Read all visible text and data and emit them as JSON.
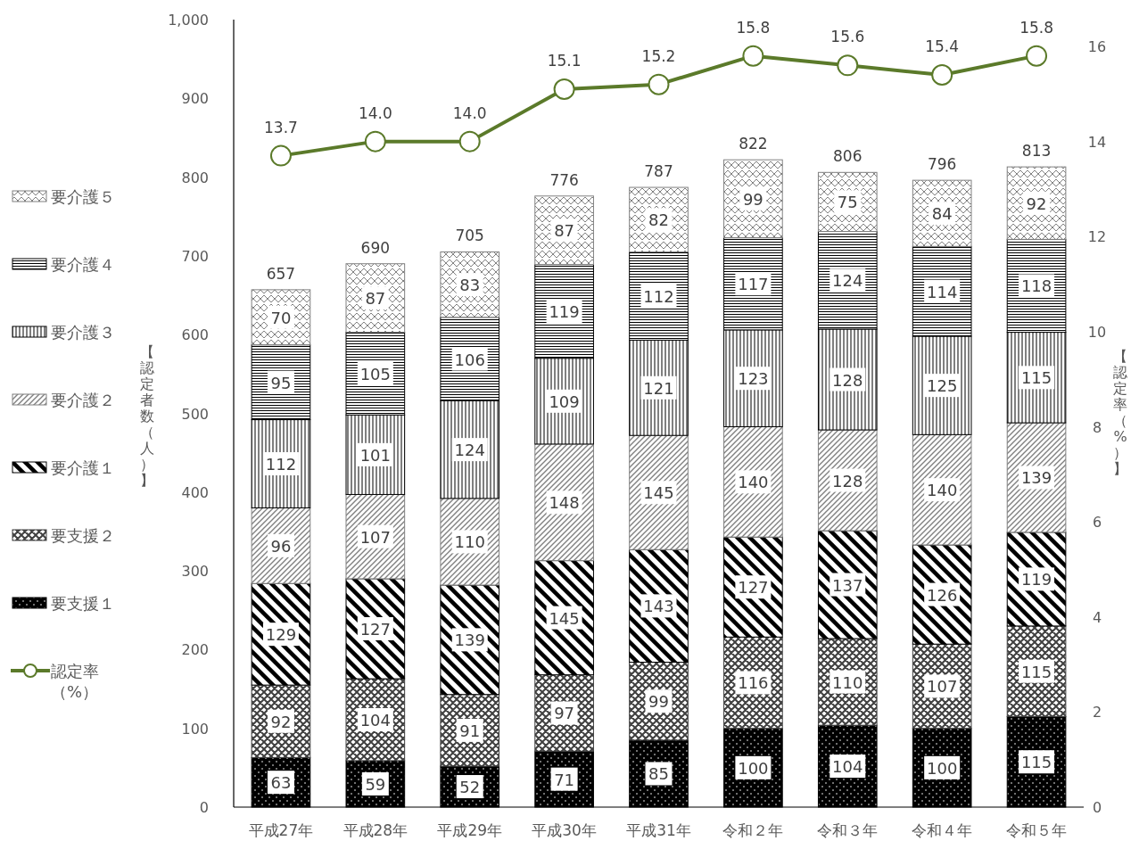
{
  "chart_data": {
    "type": "bar",
    "stacked": true,
    "ylabel": "【認定者数（人）】",
    "y2label": "【認定率（%）】",
    "categories": [
      "平成27年",
      "平成28年",
      "平成29年",
      "平成30年",
      "平成31年",
      "令和２年",
      "令和３年",
      "令和４年",
      "令和５年"
    ],
    "series": [
      {
        "name": "要支援１",
        "color": "#000000",
        "values": [
          63,
          59,
          52,
          71,
          85,
          100,
          104,
          100,
          115
        ]
      },
      {
        "name": "要支援２",
        "color": "#404040",
        "values": [
          92,
          104,
          91,
          97,
          99,
          116,
          110,
          107,
          115
        ]
      },
      {
        "name": "要介護１",
        "color": "#000000",
        "values": [
          129,
          127,
          139,
          145,
          143,
          127,
          137,
          126,
          119
        ]
      },
      {
        "name": "要介護２",
        "color": "#808080",
        "values": [
          96,
          107,
          110,
          148,
          145,
          140,
          128,
          140,
          139
        ]
      },
      {
        "name": "要介護３",
        "color": "#000000",
        "values": [
          112,
          101,
          124,
          109,
          121,
          123,
          128,
          125,
          115
        ]
      },
      {
        "name": "要介護４",
        "color": "#000000",
        "values": [
          95,
          105,
          106,
          119,
          112,
          117,
          124,
          114,
          118
        ]
      },
      {
        "name": "要介護５",
        "color": "#808080",
        "values": [
          70,
          87,
          83,
          87,
          82,
          99,
          75,
          84,
          92
        ]
      },
      {
        "name": "認定率（%）",
        "type": "line",
        "axis": "y2",
        "marker": "circle",
        "color": "#5b7a2a",
        "values": [
          13.7,
          14.0,
          14.0,
          15.1,
          15.2,
          15.8,
          15.6,
          15.4,
          15.8
        ],
        "value_labels": [
          "13.7",
          "14.0",
          "14.0",
          "15.1",
          "15.2",
          "15.8",
          "15.6",
          "15.4",
          "15.8"
        ]
      }
    ],
    "totals": [
      "657",
      "690",
      "705",
      "776",
      "787",
      "822",
      "806",
      "796",
      "813"
    ],
    "data_labels": true,
    "ylim": [
      0,
      1000
    ],
    "yticks": [
      0,
      100,
      200,
      300,
      400,
      500,
      600,
      700,
      800,
      900,
      {
        "value": 1000,
        "label": "1,000"
      }
    ],
    "y2lim": [
      0,
      16
    ],
    "y2ticks": [
      0,
      2,
      4,
      6,
      8,
      10,
      12,
      14,
      16
    ],
    "legend": "left"
  }
}
